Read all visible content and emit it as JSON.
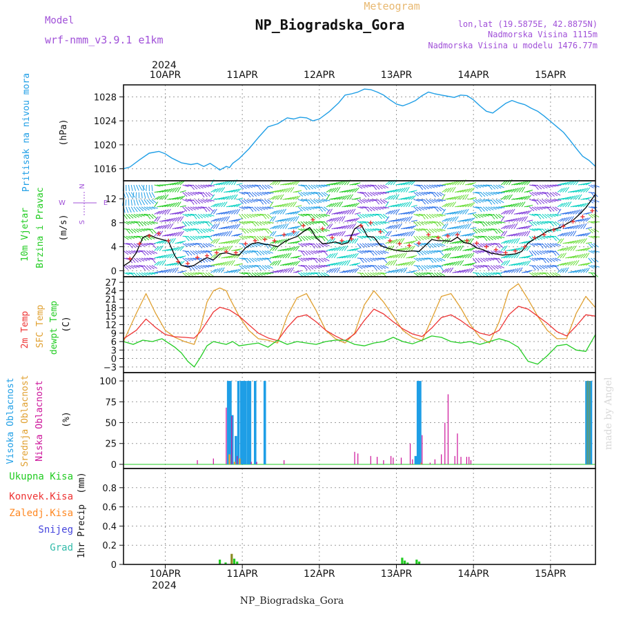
{
  "header": {
    "model_label": "Model",
    "model_name": "wrf-nmm_v3.9.1 e1km",
    "subtitle": "Meteogram",
    "station": "NP_Biogradska_Gora",
    "coords": "lon,lat (19.5875E, 42.8875N)",
    "elevation": "Nadmorska Visina 1115m",
    "model_elevation": "Nadmorska Visina u modelu 1476.77m"
  },
  "footer": {
    "station": "NP_Biogradska_Gora",
    "credit": "made by Angel"
  },
  "time_axis": {
    "year": "2024",
    "labels": [
      "10APR",
      "11APR",
      "12APR",
      "13APR",
      "14APR",
      "15APR"
    ],
    "start_hour": -13,
    "end_hour": 134
  },
  "colors": {
    "pressure": "#1e9ee6",
    "wind_speed": "#000000",
    "wind_gust": "#ee3333",
    "t2m": "#ee3333",
    "tsfc": "#e0a030",
    "dewpt": "#22cc22",
    "cloud_high": "#1e9ee6",
    "cloud_mid": "#e8a030",
    "cloud_low": "#cc1199",
    "precip_total": "#22cc22",
    "precip_conv": "#ee3333",
    "precip_frz": "#ff8822",
    "precip_snow": "#4444dd",
    "precip_hail": "#33bbaa"
  },
  "chart_data": [
    {
      "type": "line",
      "ylabel_main": "Pritisak na nivou mora",
      "ylabel_unit": "(hPa)",
      "ylim": [
        1014,
        1030
      ],
      "yticks": [
        1016,
        1020,
        1024,
        1028
      ],
      "grid": true,
      "series": [
        {
          "x": [
            -13,
            -11,
            -8,
            -5,
            -2,
            0,
            2,
            5,
            8,
            10,
            12,
            14,
            16,
            17,
            18,
            19,
            20,
            21,
            23,
            26,
            29,
            32,
            35,
            38,
            40,
            42,
            44,
            46,
            48,
            51,
            54,
            56,
            58,
            60,
            62,
            64,
            66,
            68,
            70,
            72,
            74,
            76,
            78,
            80,
            82,
            84,
            86,
            88,
            90,
            92,
            94,
            96,
            98,
            100,
            102,
            104,
            106,
            108,
            110,
            112,
            114,
            116,
            118,
            120,
            122,
            124,
            126,
            128,
            130,
            132,
            134
          ],
          "values": [
            1016.0,
            1016.3,
            1017.5,
            1018.6,
            1018.9,
            1018.5,
            1017.8,
            1017.0,
            1016.7,
            1016.9,
            1016.4,
            1016.9,
            1016.2,
            1015.8,
            1016.1,
            1016.4,
            1016.2,
            1016.9,
            1017.7,
            1019.3,
            1021.2,
            1023.0,
            1023.5,
            1024.5,
            1024.3,
            1024.6,
            1024.5,
            1024.0,
            1024.3,
            1025.5,
            1027.0,
            1028.3,
            1028.5,
            1028.8,
            1029.3,
            1029.2,
            1028.8,
            1028.3,
            1027.5,
            1026.8,
            1026.5,
            1026.9,
            1027.4,
            1028.2,
            1028.8,
            1028.5,
            1028.3,
            1028.1,
            1027.9,
            1028.3,
            1028.2,
            1027.5,
            1026.5,
            1025.6,
            1025.3,
            1026.1,
            1026.9,
            1027.4,
            1027.0,
            1026.7,
            1026.1,
            1025.6,
            1024.8,
            1023.9,
            1023.0,
            1022.1,
            1020.8,
            1019.4,
            1018.1,
            1017.4,
            1016.4
          ]
        }
      ]
    },
    {
      "type": "line",
      "ylabel_main": "10m Vjetar",
      "ylabel_sub": "Brzina i Pravac",
      "ylabel_unit": "(m/s)",
      "compass": "N W E S",
      "ylim": [
        -1,
        15
      ],
      "yticks": [
        0,
        4,
        8,
        12
      ],
      "grid": true,
      "series": [
        {
          "name": "speed",
          "x": [
            -13,
            -11,
            -9,
            -7,
            -5,
            -3,
            -1,
            1,
            3,
            5,
            7,
            9,
            11,
            13,
            15,
            17,
            19,
            21,
            23,
            25,
            27,
            29,
            31,
            33,
            35,
            37,
            39,
            41,
            43,
            45,
            47,
            49,
            51,
            53,
            55,
            57,
            59,
            61,
            63,
            65,
            67,
            69,
            71,
            73,
            75,
            77,
            79,
            81,
            83,
            85,
            87,
            89,
            91,
            93,
            95,
            97,
            99,
            101,
            103,
            105,
            107,
            109,
            111,
            113,
            115,
            117,
            119,
            121,
            123,
            125,
            127,
            129,
            131,
            133,
            134
          ],
          "values": [
            0.8,
            1.5,
            3.0,
            5.5,
            6.0,
            5.5,
            5.2,
            4.9,
            2.5,
            0.9,
            0.6,
            0.9,
            1.6,
            2.2,
            1.8,
            2.8,
            3.0,
            2.7,
            2.6,
            3.8,
            4.5,
            4.7,
            4.4,
            4.3,
            4.0,
            4.8,
            5.3,
            5.7,
            6.5,
            7.2,
            5.5,
            4.5,
            4.6,
            4.8,
            4.4,
            4.7,
            7.0,
            7.7,
            5.7,
            5.6,
            4.2,
            3.8,
            3.5,
            3.3,
            3.2,
            3.3,
            3.2,
            4.2,
            5.2,
            5.0,
            5.0,
            4.9,
            5.6,
            4.7,
            4.5,
            3.8,
            3.5,
            3.0,
            2.8,
            2.6,
            2.7,
            2.8,
            3.2,
            4.6,
            5.3,
            5.9,
            6.6,
            6.9,
            7.2,
            7.8,
            8.4,
            9.4,
            10.5,
            12.0,
            12.8
          ]
        },
        {
          "name": "gust",
          "x": [
            -11,
            -8,
            -5,
            -2,
            1,
            4,
            7,
            10,
            13,
            16,
            19,
            22,
            25,
            28,
            31,
            34,
            37,
            40,
            43,
            46,
            49,
            52,
            55,
            58,
            61,
            64,
            67,
            70,
            73,
            76,
            79,
            82,
            85,
            88,
            91,
            94,
            97,
            100,
            103,
            106,
            109,
            112,
            115,
            118,
            121,
            124,
            127,
            130,
            133
          ],
          "values": [
            2.0,
            4.5,
            5.8,
            6.2,
            5.0,
            1.5,
            1.2,
            2.2,
            2.5,
            3.0,
            3.2,
            3.0,
            4.5,
            5.0,
            5.2,
            5.0,
            6.0,
            6.5,
            7.5,
            8.5,
            7.0,
            5.5,
            5.0,
            5.3,
            7.5,
            8.0,
            6.5,
            5.0,
            4.5,
            4.2,
            4.6,
            6.0,
            5.5,
            5.8,
            6.0,
            5.0,
            4.6,
            4.0,
            3.5,
            3.0,
            3.3,
            4.0,
            5.5,
            6.0,
            6.8,
            7.4,
            8.2,
            9.0,
            10.0
          ]
        }
      ]
    },
    {
      "type": "line",
      "ylabel_main": "2m Temp",
      "ylabel_sub": "SFC Temp",
      "ylabel_sub2": "dewpt Temp",
      "ylabel_unit": "(C)",
      "ylim": [
        -5,
        29
      ],
      "yticks": [
        -3,
        0,
        3,
        6,
        9,
        12,
        15,
        18,
        21,
        24,
        27
      ],
      "grid": true,
      "series": [
        {
          "name": "2m",
          "x": [
            -13,
            -9,
            -6,
            -3,
            0,
            3,
            6,
            9,
            11,
            13,
            15,
            17,
            20,
            23,
            26,
            29,
            32,
            35,
            38,
            41,
            44,
            47,
            50,
            53,
            56,
            59,
            62,
            65,
            68,
            71,
            74,
            77,
            80,
            83,
            86,
            89,
            92,
            95,
            98,
            101,
            104,
            107,
            110,
            113,
            116,
            119,
            122,
            125,
            128,
            131,
            134
          ],
          "values": [
            7,
            10,
            14,
            11,
            8.5,
            7.7,
            7.5,
            7.2,
            9.5,
            13,
            16.5,
            18.2,
            17.2,
            15,
            12,
            9,
            7.3,
            6.3,
            11,
            14.7,
            15.5,
            13,
            10,
            8,
            6.3,
            8.7,
            13.5,
            17.5,
            15.8,
            13,
            10.5,
            8.7,
            7.8,
            10.8,
            14.5,
            15.5,
            13.5,
            11,
            9,
            8.2,
            10,
            15.5,
            18.5,
            17.5,
            15,
            12.5,
            9.5,
            8,
            11.5,
            15.5,
            15
          ]
        },
        {
          "name": "sfc",
          "x": [
            -13,
            -9,
            -6,
            -3,
            0,
            3,
            6,
            9,
            11,
            13,
            15,
            17,
            19,
            20,
            23,
            26,
            29,
            32,
            35,
            38,
            41,
            44,
            47,
            50,
            53,
            56,
            59,
            62,
            65,
            68,
            71,
            74,
            77,
            80,
            83,
            86,
            89,
            92,
            95,
            98,
            101,
            104,
            107,
            110,
            113,
            116,
            119,
            122,
            125,
            128,
            131,
            134
          ],
          "values": [
            6,
            16,
            23,
            16,
            10,
            7.5,
            6,
            5,
            11,
            20,
            24,
            25,
            24,
            21.5,
            15,
            10,
            7,
            6.5,
            5.5,
            15,
            21.5,
            23,
            17,
            10,
            7,
            5.5,
            9,
            19,
            24,
            20,
            15,
            10,
            7.5,
            6.3,
            14,
            22,
            23,
            18,
            12,
            7.5,
            5.5,
            13,
            24,
            26.5,
            21,
            15,
            10,
            7,
            7,
            16,
            22,
            18
          ]
        },
        {
          "name": "dewpt",
          "x": [
            -13,
            -10,
            -7,
            -4,
            -1,
            1,
            3,
            5,
            7,
            9,
            11,
            13,
            15,
            17,
            19,
            21,
            23,
            26,
            29,
            32,
            35,
            38,
            41,
            44,
            47,
            50,
            53,
            56,
            59,
            62,
            65,
            68,
            71,
            74,
            77,
            80,
            83,
            86,
            89,
            92,
            95,
            98,
            101,
            104,
            107,
            110,
            113,
            116,
            119,
            122,
            125,
            128,
            131,
            134
          ],
          "values": [
            6,
            5,
            6.5,
            6,
            7,
            5.5,
            4,
            2,
            -1,
            -3,
            0.5,
            4.5,
            6,
            5.5,
            5,
            6,
            4.5,
            5,
            5.5,
            4,
            6.5,
            5,
            6,
            5.5,
            5,
            6,
            6.5,
            6.5,
            5,
            4.5,
            5.5,
            6,
            7.5,
            6,
            5.2,
            6.5,
            8,
            7.5,
            6,
            5.5,
            6,
            5,
            6,
            7,
            6,
            4,
            -1,
            -2,
            1,
            4.5,
            5,
            3,
            2.5,
            8.5
          ]
        }
      ]
    },
    {
      "type": "bar",
      "ylabel_main": "Visoka Oblacnost",
      "ylabel_sub": "Srednja Oblacnost",
      "ylabel_sub2": "Niska Oblacnost",
      "ylabel_unit": "(%)",
      "ylim": [
        -5,
        110
      ],
      "yticks": [
        0,
        25,
        50,
        75,
        100
      ],
      "grid": true,
      "series": [
        {
          "name": "high",
          "x": [
            19.6,
            20.3,
            20.9,
            22,
            22.8,
            23.7,
            24.4,
            25,
            25.8,
            26.4,
            28,
            31,
            78,
            78.7,
            79.4,
            131.2,
            131.9,
            132.6
          ],
          "values": [
            100,
            100,
            59,
            34,
            100,
            100,
            100,
            100,
            100,
            100,
            100,
            100,
            10,
            100,
            100,
            100,
            100,
            100
          ]
        },
        {
          "name": "mid",
          "x": [
            20,
            21.6,
            23.2,
            79.8,
            131.5,
            132.2
          ],
          "values": [
            12,
            3,
            7,
            2,
            100,
            100
          ]
        },
        {
          "name": "low",
          "x": [
            10,
            15,
            19,
            20.7,
            22.4,
            26.8,
            28.5,
            37,
            59,
            60,
            64,
            66,
            68,
            70.3,
            71,
            73.5,
            76.3,
            77,
            80,
            82.5,
            84,
            86,
            87.1,
            88.1,
            90.2,
            91,
            92.1,
            93.9,
            94.6,
            95.2
          ],
          "values": [
            5,
            7,
            68,
            58,
            10,
            3,
            3,
            5,
            15,
            13,
            10,
            9,
            5,
            10,
            8,
            8,
            25,
            6,
            35,
            2,
            6,
            12,
            50,
            84,
            10,
            37,
            9,
            9,
            9,
            5
          ]
        }
      ]
    },
    {
      "type": "bar",
      "legend": [
        "Ukupna Kisa",
        "Konvek.Kisa",
        "Zaledj.Kisa",
        "Snijeg",
        "Grad"
      ],
      "ylabel_main": "1hr Precip",
      "ylabel_unit": "(mm)",
      "ylim": [
        0,
        1.0
      ],
      "yticks": [
        0,
        0.2,
        0.4,
        0.6,
        0.8
      ],
      "grid": true,
      "series": [
        {
          "name": "total",
          "x": [
            17,
            18.8,
            20.7,
            21.5,
            22.4,
            73.8,
            74.6,
            75.5,
            78.3,
            79.1
          ],
          "values": [
            0.05,
            0.02,
            0.11,
            0.06,
            0.03,
            0.07,
            0.04,
            0.02,
            0.05,
            0.03
          ]
        }
      ]
    }
  ]
}
